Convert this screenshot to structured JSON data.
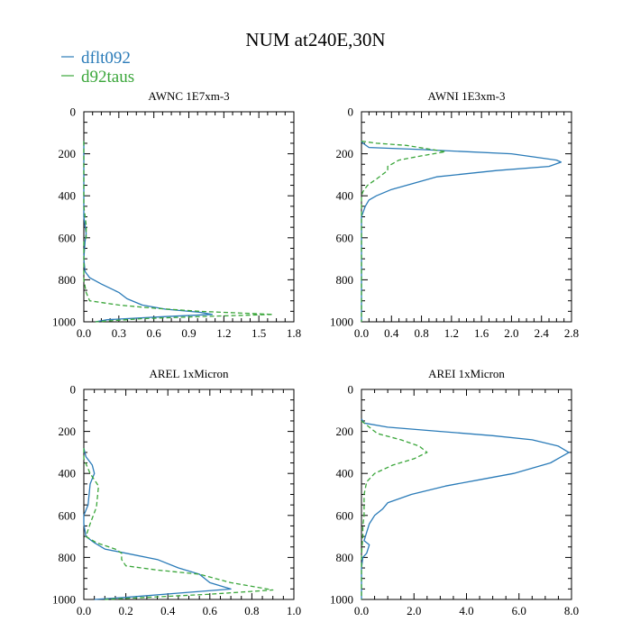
{
  "title": "NUM at240E,30N",
  "legend": [
    {
      "name": "dflt092",
      "color": "#2a7bb8",
      "dash": "solid"
    },
    {
      "name": "d92taus",
      "color": "#3aa63a",
      "dash": "dashed"
    }
  ],
  "chart_data": [
    {
      "type": "line",
      "title": "AWNC  1E7xm-3",
      "xlim": [
        0,
        1.8
      ],
      "xticks": [
        "0.0",
        "0.3",
        "0.6",
        "0.9",
        "1.2",
        "1.5",
        "1.8"
      ],
      "ylim": [
        0,
        1000
      ],
      "yticks": [
        "0",
        "200",
        "400",
        "600",
        "800",
        "1000"
      ],
      "series": [
        {
          "name": "dflt092",
          "points": [
            [
              0,
              140
            ],
            [
              0,
              500
            ],
            [
              0.02,
              580
            ],
            [
              0.01,
              620
            ],
            [
              0,
              700
            ],
            [
              0.01,
              760
            ],
            [
              0.05,
              790
            ],
            [
              0.15,
              820
            ],
            [
              0.3,
              860
            ],
            [
              0.37,
              890
            ],
            [
              0.5,
              920
            ],
            [
              0.7,
              940
            ],
            [
              1.0,
              955
            ],
            [
              1.1,
              965
            ],
            [
              0.7,
              975
            ],
            [
              0.2,
              990
            ],
            [
              0.1,
              1000
            ]
          ]
        },
        {
          "name": "d92taus",
          "points": [
            [
              0,
              140
            ],
            [
              0,
              450
            ],
            [
              0.02,
              540
            ],
            [
              0.02,
              600
            ],
            [
              0,
              620
            ],
            [
              0,
              800
            ],
            [
              0.02,
              860
            ],
            [
              0.05,
              900
            ],
            [
              0.3,
              920
            ],
            [
              0.6,
              935
            ],
            [
              1.0,
              950
            ],
            [
              1.62,
              965
            ],
            [
              1.0,
              975
            ],
            [
              0.5,
              985
            ],
            [
              0.1,
              1000
            ]
          ]
        }
      ]
    },
    {
      "type": "line",
      "title": "AWNI  1E3xm-3",
      "xlim": [
        0,
        2.8
      ],
      "xticks": [
        "0.0",
        "0.4",
        "0.8",
        "1.2",
        "1.6",
        "2.0",
        "2.4",
        "2.8"
      ],
      "ylim": [
        0,
        1000
      ],
      "yticks": [
        "0",
        "200",
        "400",
        "600",
        "800",
        "1000"
      ],
      "series": [
        {
          "name": "dflt092",
          "points": [
            [
              0,
              140
            ],
            [
              0.02,
              150
            ],
            [
              0.1,
              170
            ],
            [
              0.8,
              180
            ],
            [
              2.0,
              200
            ],
            [
              2.6,
              230
            ],
            [
              2.66,
              240
            ],
            [
              2.5,
              260
            ],
            [
              1.8,
              280
            ],
            [
              1.0,
              310
            ],
            [
              0.7,
              340
            ],
            [
              0.4,
              370
            ],
            [
              0.2,
              400
            ],
            [
              0.1,
              420
            ],
            [
              0.05,
              450
            ],
            [
              0.02,
              480
            ],
            [
              0,
              500
            ],
            [
              0,
              1000
            ]
          ]
        },
        {
          "name": "d92taus",
          "points": [
            [
              0,
              140
            ],
            [
              0.2,
              150
            ],
            [
              0.6,
              160
            ],
            [
              1.12,
              190
            ],
            [
              0.8,
              210
            ],
            [
              0.5,
              230
            ],
            [
              0.35,
              260
            ],
            [
              0.35,
              280
            ],
            [
              0.2,
              320
            ],
            [
              0.08,
              350
            ],
            [
              0.02,
              380
            ],
            [
              0,
              400
            ],
            [
              0,
              1000
            ]
          ]
        }
      ]
    },
    {
      "type": "line",
      "title": "AREL  1xMicron",
      "xlim": [
        0,
        1.0
      ],
      "xticks": [
        "0.0",
        "0.2",
        "0.4",
        "0.6",
        "0.8",
        "1.0"
      ],
      "ylim": [
        0,
        1000
      ],
      "yticks": [
        "0",
        "200",
        "400",
        "600",
        "800",
        "1000"
      ],
      "series": [
        {
          "name": "dflt092",
          "points": [
            [
              0,
              280
            ],
            [
              0.01,
              320
            ],
            [
              0.04,
              360
            ],
            [
              0.05,
              400
            ],
            [
              0.03,
              450
            ],
            [
              0.02,
              550
            ],
            [
              0,
              600
            ],
            [
              0,
              640
            ],
            [
              0.01,
              700
            ],
            [
              0.05,
              730
            ],
            [
              0.1,
              760
            ],
            [
              0.2,
              780
            ],
            [
              0.35,
              810
            ],
            [
              0.45,
              850
            ],
            [
              0.55,
              880
            ],
            [
              0.6,
              920
            ],
            [
              0.7,
              950
            ],
            [
              0.45,
              970
            ],
            [
              0.2,
              990
            ],
            [
              0.05,
              1000
            ]
          ]
        },
        {
          "name": "d92taus",
          "points": [
            [
              0,
              280
            ],
            [
              0,
              330
            ],
            [
              0.03,
              400
            ],
            [
              0.07,
              460
            ],
            [
              0.06,
              560
            ],
            [
              0.03,
              640
            ],
            [
              0.01,
              700
            ],
            [
              0.06,
              730
            ],
            [
              0.15,
              760
            ],
            [
              0.18,
              780
            ],
            [
              0.18,
              810
            ],
            [
              0.2,
              840
            ],
            [
              0.35,
              860
            ],
            [
              0.55,
              880
            ],
            [
              0.7,
              920
            ],
            [
              0.9,
              955
            ],
            [
              0.6,
              975
            ],
            [
              0.3,
              990
            ],
            [
              0.1,
              1000
            ]
          ]
        }
      ]
    },
    {
      "type": "line",
      "title": "AREI  1xMicron",
      "xlim": [
        0,
        8.0
      ],
      "xticks": [
        "0.0",
        "2.0",
        "4.0",
        "6.0",
        "8.0"
      ],
      "ylim": [
        0,
        1000
      ],
      "yticks": [
        "0",
        "200",
        "400",
        "600",
        "800",
        "1000"
      ],
      "series": [
        {
          "name": "dflt092",
          "points": [
            [
              0,
              140
            ],
            [
              0.1,
              160
            ],
            [
              1.0,
              180
            ],
            [
              3.0,
              200
            ],
            [
              5.0,
              220
            ],
            [
              6.5,
              240
            ],
            [
              7.5,
              270
            ],
            [
              7.9,
              300
            ],
            [
              7.2,
              350
            ],
            [
              5.8,
              400
            ],
            [
              4.5,
              430
            ],
            [
              3.2,
              460
            ],
            [
              1.9,
              500
            ],
            [
              1.0,
              540
            ],
            [
              0.8,
              570
            ],
            [
              0.5,
              600
            ],
            [
              0.3,
              640
            ],
            [
              0.2,
              680
            ],
            [
              0.1,
              720
            ],
            [
              0.3,
              740
            ],
            [
              0.2,
              780
            ],
            [
              0.05,
              800
            ],
            [
              0,
              850
            ],
            [
              0,
              1000
            ]
          ]
        },
        {
          "name": "d92taus",
          "points": [
            [
              0,
              150
            ],
            [
              0.3,
              180
            ],
            [
              0.6,
              210
            ],
            [
              1.5,
              240
            ],
            [
              2.2,
              270
            ],
            [
              2.5,
              300
            ],
            [
              2.0,
              330
            ],
            [
              1.2,
              360
            ],
            [
              0.5,
              400
            ],
            [
              0.2,
              440
            ],
            [
              0.1,
              500
            ],
            [
              0.1,
              600
            ],
            [
              0.05,
              650
            ],
            [
              0.05,
              700
            ],
            [
              0.02,
              750
            ],
            [
              0,
              800
            ],
            [
              0,
              1000
            ]
          ]
        }
      ]
    }
  ]
}
